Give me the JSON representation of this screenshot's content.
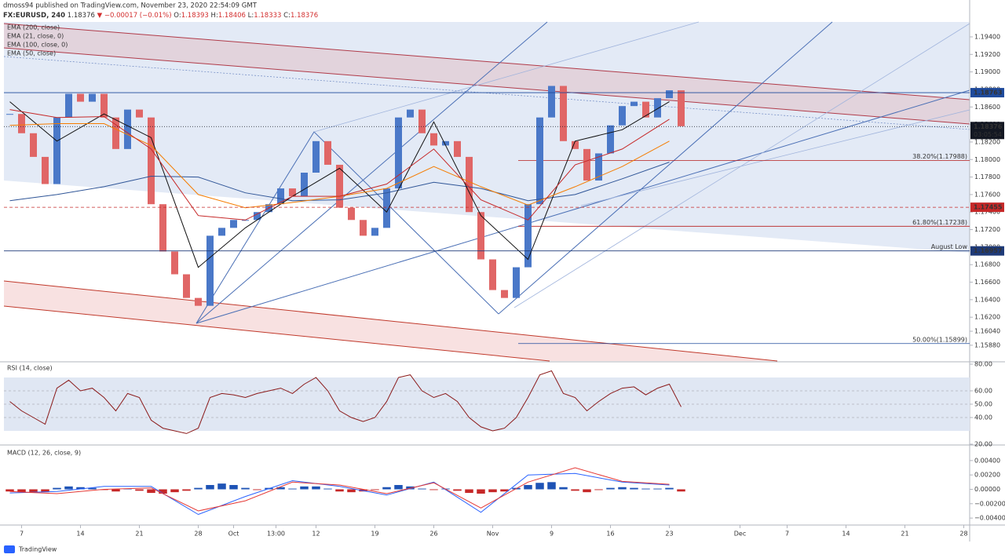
{
  "header": {
    "published": "dmoss94 published on TradingView.com, November 23, 2020 22:54:09 GMT",
    "symbol": "FX:EURUSD, 240",
    "last": "1.18376",
    "change": "▼ −0.00017 (−0.01%)",
    "ohlc": [
      {
        "label": "O:",
        "value": "1.18393"
      },
      {
        "label": "H:",
        "value": "1.18406"
      },
      {
        "label": "L:",
        "value": "1.18333"
      },
      {
        "label": "C:",
        "value": "1.18376"
      }
    ]
  },
  "chart_data": [
    {
      "type": "candlestick",
      "xlim": [
        -1.5,
        80.5
      ],
      "xticks": [
        {
          "value": 0,
          "label": "7"
        },
        {
          "value": 5,
          "label": "14"
        },
        {
          "value": 10,
          "label": "21"
        },
        {
          "value": 15,
          "label": "28"
        },
        {
          "value": 18,
          "label": "Oct"
        },
        {
          "value": 21.6,
          "label": "13:00"
        },
        {
          "value": 25,
          "label": "12"
        },
        {
          "value": 30,
          "label": "19"
        },
        {
          "value": 35,
          "label": "26"
        },
        {
          "value": 40,
          "label": "Nov"
        },
        {
          "value": 45,
          "label": "9"
        },
        {
          "value": 50,
          "label": "16"
        },
        {
          "value": 55,
          "label": "23"
        },
        {
          "value": 61,
          "label": "Dec"
        },
        {
          "value": 65,
          "label": "7"
        },
        {
          "value": 70,
          "label": "14"
        },
        {
          "value": 75,
          "label": "21"
        },
        {
          "value": 80,
          "label": "28"
        }
      ],
      "ylim": [
        1.157,
        1.1957
      ],
      "yticks": [
        {
          "value": 1.194,
          "label": "1.19400"
        },
        {
          "value": 1.192,
          "label": "1.19200"
        },
        {
          "value": 1.19,
          "label": "1.19000"
        },
        {
          "value": 1.188,
          "label": "1.18800"
        },
        {
          "value": 1.186,
          "label": "1.18600"
        },
        {
          "value": 1.184,
          "label": "1.18400"
        },
        {
          "value": 1.182,
          "label": "1.18200"
        },
        {
          "value": 1.18,
          "label": "1.18000"
        },
        {
          "value": 1.178,
          "label": "1.17800"
        },
        {
          "value": 1.176,
          "label": "1.17600"
        },
        {
          "value": 1.174,
          "label": "1.17400"
        },
        {
          "value": 1.172,
          "label": "1.17200"
        },
        {
          "value": 1.17,
          "label": "1.17000"
        },
        {
          "value": 1.168,
          "label": "1.16800"
        },
        {
          "value": 1.166,
          "label": "1.16600"
        },
        {
          "value": 1.164,
          "label": "1.16400"
        },
        {
          "value": 1.162,
          "label": "1.16200"
        },
        {
          "value": 1.1604,
          "label": "1.16040"
        },
        {
          "value": 1.1588,
          "label": "1.15880"
        }
      ],
      "grid": false,
      "series": [
        {
          "type": "candlestick",
          "up_color": "#4a78c8",
          "down_color": "#e06666",
          "x": [
            -1,
            0,
            1,
            2,
            3,
            4,
            5,
            6,
            7,
            8,
            9,
            10,
            11,
            12,
            13,
            14,
            15,
            16,
            17,
            18,
            19,
            20,
            21,
            22,
            23,
            24,
            25,
            26,
            27,
            28,
            29,
            30,
            31,
            32,
            33,
            34,
            35,
            36,
            37,
            38,
            39,
            40,
            41,
            42,
            43,
            44,
            45,
            46,
            47,
            48,
            49,
            50,
            51,
            52,
            53,
            54,
            55,
            56
          ],
          "values": [
            1.1852,
            1.183,
            1.1803,
            1.1772,
            1.1848,
            1.1875,
            1.1866,
            1.1875,
            1.1848,
            1.1812,
            1.1857,
            1.1848,
            1.1749,
            1.1695,
            1.1669,
            1.1642,
            1.1633,
            1.1713,
            1.1722,
            1.1731,
            1.1731,
            1.174,
            1.1749,
            1.1767,
            1.1758,
            1.1785,
            1.1821,
            1.1794,
            1.1745,
            1.1731,
            1.1713,
            1.1722,
            1.1767,
            1.1848,
            1.1857,
            1.183,
            1.1816,
            1.1821,
            1.1803,
            1.174,
            1.1686,
            1.1651,
            1.1642,
            1.1677,
            1.1749,
            1.1848,
            1.1884,
            1.1821,
            1.1812,
            1.1776,
            1.1807,
            1.1839,
            1.1861,
            1.1866,
            1.1848,
            1.187,
            1.1879,
            1.1838
          ]
        },
        {
          "type": "line",
          "name": "EMA (200, close)",
          "color": "#2f5597",
          "x": [
            -1,
            3,
            7,
            11,
            15,
            19,
            23,
            27,
            31,
            35,
            39,
            43,
            47,
            51,
            55
          ],
          "values": [
            1.1753,
            1.176,
            1.1769,
            1.1781,
            1.178,
            1.1762,
            1.1753,
            1.1754,
            1.1762,
            1.1774,
            1.1767,
            1.1753,
            1.176,
            1.1778,
            1.1797
          ]
        },
        {
          "type": "line",
          "name": "EMA (21, close, 0)",
          "color": "#111111",
          "x": [
            -1,
            3,
            7,
            11,
            15,
            19,
            23,
            27,
            31,
            35,
            39,
            43,
            47,
            51,
            55
          ],
          "values": [
            1.1866,
            1.1821,
            1.1852,
            1.1825,
            1.1677,
            1.1722,
            1.1758,
            1.179,
            1.174,
            1.1843,
            1.1736,
            1.1686,
            1.1821,
            1.1834,
            1.1866
          ]
        },
        {
          "type": "line",
          "name": "EMA (100, close, 0)",
          "color": "#f57c00",
          "x": [
            -1,
            3,
            7,
            11,
            15,
            19,
            23,
            27,
            31,
            35,
            39,
            43,
            47,
            51,
            55
          ],
          "values": [
            1.1839,
            1.1841,
            1.1841,
            1.1816,
            1.176,
            1.1745,
            1.1751,
            1.1758,
            1.1767,
            1.1792,
            1.1769,
            1.1748,
            1.1769,
            1.1792,
            1.1821
          ]
        },
        {
          "type": "line",
          "name": "EMA (50, close)",
          "color": "#c62828",
          "x": [
            -1,
            3,
            7,
            11,
            15,
            19,
            23,
            27,
            31,
            35,
            39,
            43,
            47,
            51,
            55
          ],
          "values": [
            1.1857,
            1.1848,
            1.1849,
            1.1812,
            1.1736,
            1.1731,
            1.1758,
            1.1758,
            1.1772,
            1.1812,
            1.1754,
            1.1731,
            1.1794,
            1.1812,
            1.1846
          ]
        }
      ],
      "price_labels": [
        {
          "value": 1.18763,
          "label": "1.18763",
          "color": "#1e4a9c",
          "line": "solid"
        },
        {
          "value": 1.18376,
          "label": "1.18376",
          "color": "#131722",
          "line": "dotted",
          "countdown": "03:05:54"
        },
        {
          "value": 1.17455,
          "label": "1.17455",
          "color": "#c62828",
          "line": "dashed"
        },
        {
          "value": 1.16957,
          "label": "1.16957",
          "color": "#1e3a78",
          "line": "solid",
          "note": "August Low"
        }
      ],
      "fib_levels": [
        {
          "value": 1.17988,
          "label": "38.20%(1.17988)",
          "color": "#b71c1c"
        },
        {
          "value": 1.17238,
          "label": "61.80%(1.17238)",
          "color": "#b71c1c"
        },
        {
          "value": 1.15899,
          "label": "50.00%(1.15899)",
          "color": "#1e4a9c"
        }
      ]
    },
    {
      "type": "line",
      "title": "RSI (14, close)",
      "xlim": [
        -1.5,
        80.5
      ],
      "ylim": [
        20,
        80
      ],
      "yticks": [
        {
          "value": 80,
          "label": "80.00"
        },
        {
          "value": 60,
          "label": "60.00"
        },
        {
          "value": 50,
          "label": "50.00"
        },
        {
          "value": 40,
          "label": "40.00"
        },
        {
          "value": 20,
          "label": "20.00"
        }
      ],
      "grid": true,
      "band": [
        30,
        70
      ],
      "series": [
        {
          "type": "line",
          "color": "#8b1a1a",
          "x": [
            -1,
            0,
            1,
            2,
            3,
            4,
            5,
            6,
            7,
            8,
            9,
            10,
            11,
            12,
            13,
            14,
            15,
            16,
            17,
            18,
            19,
            20,
            21,
            22,
            23,
            24,
            25,
            26,
            27,
            28,
            29,
            30,
            31,
            32,
            33,
            34,
            35,
            36,
            37,
            38,
            39,
            40,
            41,
            42,
            43,
            44,
            45,
            46,
            47,
            48,
            49,
            50,
            51,
            52,
            53,
            54,
            55,
            56
          ],
          "values": [
            52,
            45,
            40,
            35,
            62,
            68,
            60,
            62,
            55,
            45,
            58,
            55,
            38,
            32,
            30,
            28,
            32,
            55,
            58,
            57,
            55,
            58,
            60,
            62,
            58,
            65,
            70,
            60,
            45,
            40,
            37,
            40,
            52,
            70,
            72,
            60,
            55,
            58,
            52,
            40,
            33,
            30,
            32,
            40,
            55,
            72,
            75,
            58,
            55,
            45,
            52,
            58,
            62,
            63,
            57,
            62,
            65,
            48
          ]
        }
      ]
    },
    {
      "type": "bar",
      "title": "MACD (12, 26, close, 9)",
      "xlim": [
        -1.5,
        80.5
      ],
      "ylim": [
        -0.00486,
        0.00584
      ],
      "yticks": [
        {
          "value": 0.004,
          "label": "0.00400"
        },
        {
          "value": 0.002,
          "label": "0.00200"
        },
        {
          "value": 0,
          "label": "0.00000"
        },
        {
          "value": -0.002,
          "label": "−0.00200"
        },
        {
          "value": -0.004,
          "label": "−0.00400"
        }
      ],
      "grid": false,
      "series": [
        {
          "type": "bar",
          "up_color": "#1e53b5",
          "down_color": "#c62828",
          "x": [
            -1,
            0,
            1,
            2,
            3,
            4,
            5,
            6,
            7,
            8,
            9,
            10,
            11,
            12,
            13,
            14,
            15,
            16,
            17,
            18,
            19,
            20,
            21,
            22,
            23,
            24,
            25,
            26,
            27,
            28,
            29,
            30,
            31,
            32,
            33,
            34,
            35,
            36,
            37,
            38,
            39,
            40,
            41,
            42,
            43,
            44,
            45,
            46,
            47,
            48,
            49,
            50,
            51,
            52,
            53,
            54,
            55,
            56
          ],
          "values": [
            -0.0003,
            -0.0004,
            -0.0005,
            -0.0004,
            0.0002,
            0.0004,
            0.0003,
            0.0002,
            -0.0001,
            -0.0003,
            0.0001,
            -0.0002,
            -0.0005,
            -0.0006,
            -0.0004,
            -0.0002,
            0.0002,
            0.0006,
            0.0008,
            0.0006,
            0.0002,
            -0.0001,
            0.0002,
            0.0003,
            0.0001,
            0.0004,
            0.0004,
            0.0001,
            -0.0003,
            -0.0004,
            -0.0003,
            -0.0001,
            0.0003,
            0.0006,
            0.0004,
            0.0001,
            -0.0001,
            0.0001,
            -0.0002,
            -0.0005,
            -0.0006,
            -0.0004,
            -0.0003,
            0.0002,
            0.0006,
            0.0009,
            0.001,
            0.0003,
            -0.0002,
            -0.0004,
            -0.0001,
            0.0002,
            0.0003,
            0.0002,
            0.0001,
            0.0001,
            0.0002,
            -0.0003
          ]
        },
        {
          "type": "line",
          "color": "#2962ff",
          "x": [
            -1,
            3,
            7,
            11,
            15,
            19,
            23,
            27,
            31,
            35,
            39,
            43,
            47,
            51,
            55
          ],
          "values": [
            -0.0005,
            -0.0003,
            0.0004,
            0.0004,
            -0.0035,
            -0.001,
            0.0012,
            0.0004,
            -0.0008,
            0.001,
            -0.0032,
            0.002,
            0.0022,
            0.001,
            0.0006
          ]
        },
        {
          "type": "line",
          "color": "#e53935",
          "x": [
            -1,
            3,
            7,
            11,
            15,
            19,
            23,
            27,
            31,
            35,
            39,
            43,
            47,
            51,
            55
          ],
          "values": [
            -0.0003,
            -0.0006,
            0.0,
            0.0002,
            -0.003,
            -0.0016,
            0.001,
            0.0006,
            -0.0006,
            0.0009,
            -0.0026,
            0.001,
            0.003,
            0.0011,
            0.0007
          ]
        }
      ]
    }
  ],
  "footer": "TradingView"
}
